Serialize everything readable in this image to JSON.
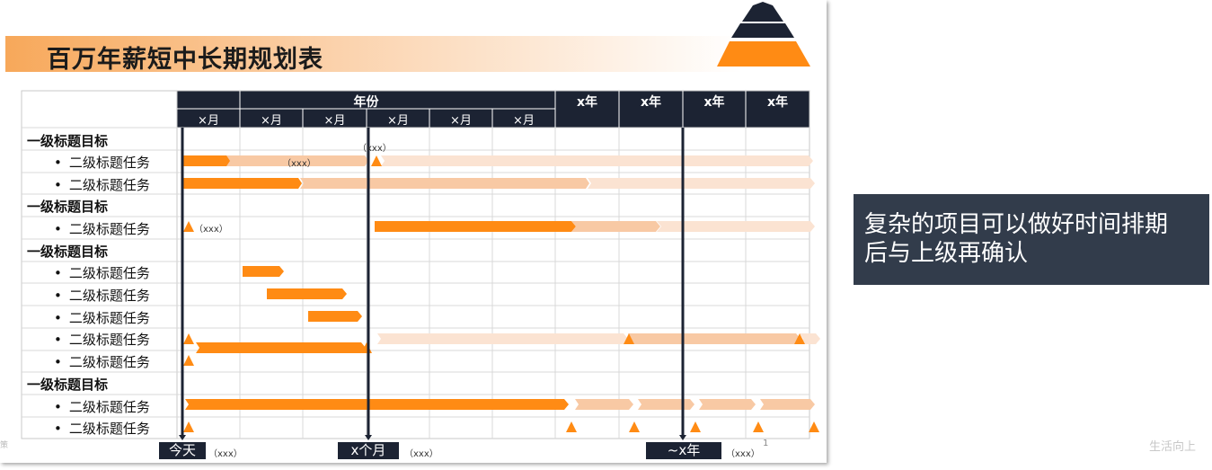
{
  "slide": {
    "title": "百万年薪短中长期规划表",
    "page_number": "1",
    "edge_fragment": "策"
  },
  "header": {
    "years_label": "年份",
    "months": [
      "×月",
      "×月",
      "×月",
      "×月",
      "×月",
      "×月"
    ],
    "years": [
      "x年",
      "x年",
      "x年",
      "x年"
    ]
  },
  "rows": [
    {
      "level": 1,
      "label": "一级标题目标"
    },
    {
      "level": 2,
      "label": "二级标题任务"
    },
    {
      "level": 2,
      "label": "二级标题任务"
    },
    {
      "level": 1,
      "label": "一级标题目标"
    },
    {
      "level": 2,
      "label": "二级标题任务"
    },
    {
      "level": 1,
      "label": "一级标题目标"
    },
    {
      "level": 2,
      "label": "二级标题任务"
    },
    {
      "level": 2,
      "label": "二级标题任务"
    },
    {
      "level": 2,
      "label": "二级标题任务"
    },
    {
      "level": 2,
      "label": "二级标题任务"
    },
    {
      "level": 2,
      "label": "二级标题任务"
    },
    {
      "level": 1,
      "label": "一级标题目标"
    },
    {
      "level": 2,
      "label": "二级标题任务"
    },
    {
      "level": 2,
      "label": "二级标题任务"
    }
  ],
  "notes": {
    "row1_mid": "（xxx）",
    "row1_top": "（xxx）",
    "row4": "（xxx）"
  },
  "markers": {
    "today": {
      "label": "今天",
      "note": "（xxx）"
    },
    "month": {
      "label": "x个月",
      "note": "（xxx）"
    },
    "year": {
      "label": "~x年",
      "note": "（xxx）"
    }
  },
  "callout": {
    "line1": "复杂的项目可以做好时间排期",
    "line2": "后与上级再确认"
  },
  "watermark": "生活向上",
  "colors": {
    "navy": "#1c2333",
    "orange": "#ff8b14",
    "light_orange": "#f8c9a4",
    "pale_orange": "#fbe3d2",
    "callout_bg": "#323c4b"
  }
}
